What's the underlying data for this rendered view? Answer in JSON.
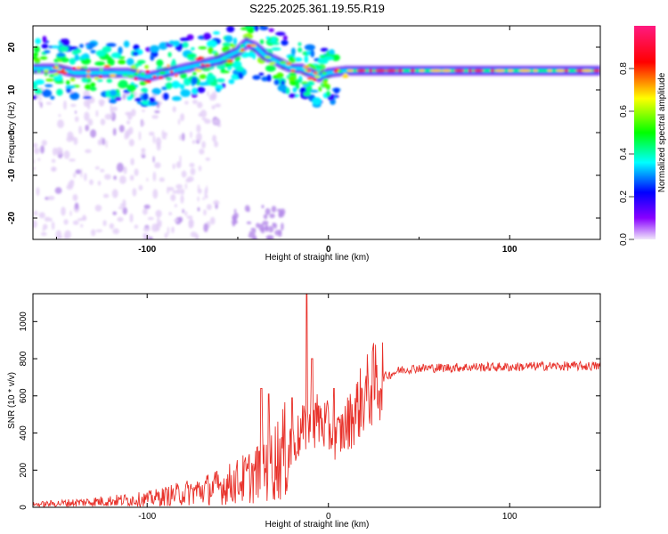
{
  "title": "S225.2025.361.19.55.R19",
  "colors": {
    "snr_line": "#e8312a",
    "ridge_core": "#e8203a"
  },
  "chart_data": [
    {
      "type": "heatmap",
      "xlabel": "Height of straight line (km)",
      "ylabel": "Frequency (Hz)",
      "xlim": [
        -163,
        150
      ],
      "ylim": [
        -25,
        25
      ],
      "x_ticks": [
        -100,
        0,
        100
      ],
      "y_ticks": [
        -20,
        -10,
        0,
        10,
        20
      ],
      "colorbar": {
        "label": "Normalized spectral amplitude",
        "range": [
          0,
          1
        ],
        "ticks": [
          0.0,
          0.2,
          0.4,
          0.6,
          0.8
        ],
        "colormap": [
          "#f0e6fa",
          "#8800ff",
          "#0000ff",
          "#00ffff",
          "#00ff00",
          "#ffff00",
          "#ff0000",
          "#ff0088"
        ]
      },
      "ridge_frequency": {
        "x": [
          -163,
          -150,
          -140,
          -130,
          -120,
          -110,
          -100,
          -90,
          -80,
          -70,
          -60,
          -50,
          -45,
          -40,
          -35,
          -30,
          -25,
          -20,
          -15,
          -10,
          -5,
          0,
          10,
          20,
          40,
          60,
          80,
          100,
          120,
          150
        ],
        "y": [
          15,
          15,
          14,
          14,
          14,
          14,
          13,
          14,
          15,
          16,
          17,
          19,
          21,
          20,
          18,
          17,
          16,
          15,
          15,
          14,
          13,
          14,
          14.5,
          14.5,
          14.5,
          14.5,
          14.5,
          14.5,
          14.5,
          14.5
        ]
      }
    },
    {
      "type": "line",
      "xlabel": "Height of straight line (km)",
      "ylabel": "SNR (10 * v/v)",
      "xlim": [
        -163,
        150
      ],
      "ylim": [
        0,
        1150
      ],
      "x_ticks": [
        -100,
        0,
        100
      ],
      "y_ticks": [
        0,
        200,
        400,
        600,
        800,
        1000
      ],
      "trend": {
        "x": [
          -163,
          -140,
          -120,
          -100,
          -80,
          -60,
          -50,
          -40,
          -30,
          -20,
          -15,
          -10,
          -5,
          0,
          5,
          10,
          15,
          20,
          25,
          30,
          40,
          50,
          60,
          80,
          100,
          120,
          150
        ],
        "y": [
          15,
          25,
          35,
          45,
          75,
          110,
          140,
          180,
          250,
          330,
          400,
          450,
          470,
          420,
          380,
          440,
          520,
          600,
          660,
          700,
          740,
          750,
          750,
          755,
          755,
          760,
          760
        ]
      },
      "peaks": [
        {
          "x": -37,
          "y": 640
        },
        {
          "x": -33,
          "y": 610
        },
        {
          "x": -20,
          "y": 590
        },
        {
          "x": -12,
          "y": 1150
        },
        {
          "x": -9,
          "y": 800
        },
        {
          "x": -7,
          "y": 560
        },
        {
          "x": 3,
          "y": 640
        }
      ]
    }
  ]
}
